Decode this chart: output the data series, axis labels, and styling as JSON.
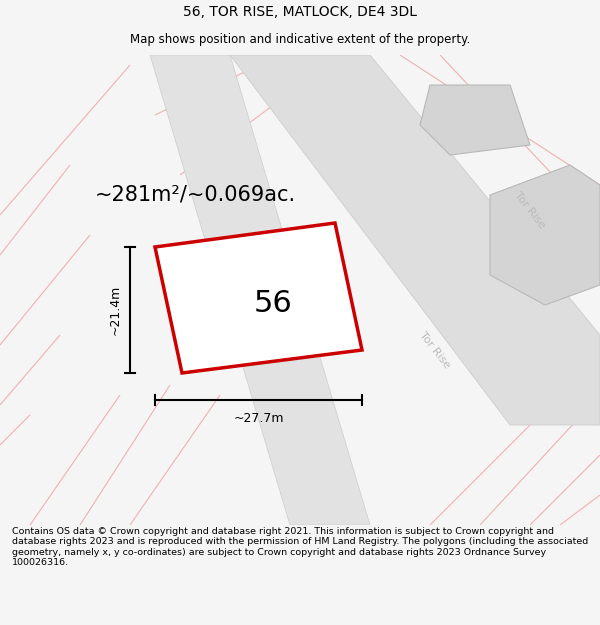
{
  "title": "56, TOR RISE, MATLOCK, DE4 3DL",
  "subtitle": "Map shows position and indicative extent of the property.",
  "area_text": "~281m²/~0.069ac.",
  "width_label": "~27.7m",
  "height_label": "~21.4m",
  "plot_number": "56",
  "footer_text": "Contains OS data © Crown copyright and database right 2021. This information is subject to Crown copyright and database rights 2023 and is reproduced with the permission of HM Land Registry. The polygons (including the associated geometry, namely x, y co-ordinates) are subject to Crown copyright and database rights 2023 Ordnance Survey 100026316.",
  "bg_color": "#f5f5f5",
  "map_bg": "#f8f8f8",
  "plot_stroke": "#cc0000",
  "light_pink": "#f0b0b0",
  "road_fill": "#dedede",
  "neighbor_fill": "#d4d4d4",
  "title_fontsize": 10,
  "subtitle_fontsize": 8.5,
  "area_fontsize": 15,
  "dim_fontsize": 9,
  "footer_fontsize": 6.8,
  "road_label_color": "#bbbbbb",
  "road_label_size": 8
}
